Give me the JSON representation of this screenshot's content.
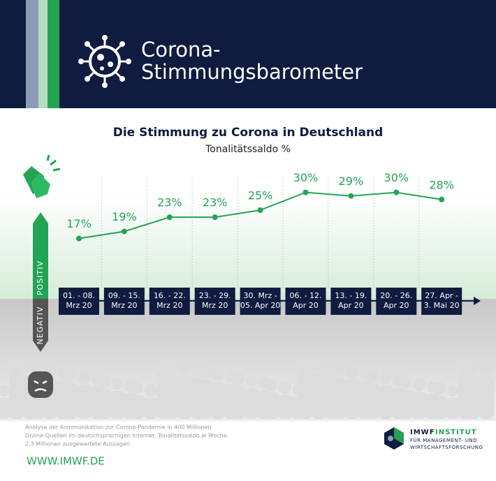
{
  "header": {
    "title_lines": [
      "Corona-",
      "Stimmungsbarometer"
    ]
  },
  "chart_data": {
    "type": "line",
    "title": "Die Stimmung zu Corona in Deutschland",
    "subtitle": "Tonalitätssaldo %",
    "categories": [
      [
        "01. - 08.",
        "Mrz 20"
      ],
      [
        "09. - 15.",
        "Mrz 20"
      ],
      [
        "16. - 22.",
        "Mrz 20"
      ],
      [
        "23. - 29.",
        "Mrz 20"
      ],
      [
        "30. Mrz -",
        "05. Apr 20"
      ],
      [
        "06. - 12.",
        "Apr 20"
      ],
      [
        "13. - 19.",
        "Apr 20"
      ],
      [
        "20. - 26.",
        "Apr 20"
      ],
      [
        "27. Apr -",
        "3. Mai 20"
      ]
    ],
    "values": [
      17,
      19,
      23,
      23,
      25,
      30,
      29,
      30,
      28
    ],
    "value_labels": [
      "17%",
      "19%",
      "23%",
      "23%",
      "25%",
      "30%",
      "29%",
      "30%",
      "28%"
    ],
    "color": "#23a455",
    "positive_label": "POSITIV",
    "negative_label": "NEGATIV"
  },
  "footer": {
    "note_lines": [
      "Analyse der Kommunikation zur Corona-Pandemie in 400 Millionen",
      "Online-Quellen im deutschsprachigen Internet. Tonalitätssaldo je Woche.",
      "2,3 Millionen ausgewertete Aussagen."
    ],
    "url": "WWW.IMWF.DE",
    "logo_name": "IMWF",
    "logo_institut": "INSTITUT",
    "logo_line2": "FÜR MANAGEMENT- UND",
    "logo_line3": "WIRTSCHAFTSFORSCHUNG"
  }
}
